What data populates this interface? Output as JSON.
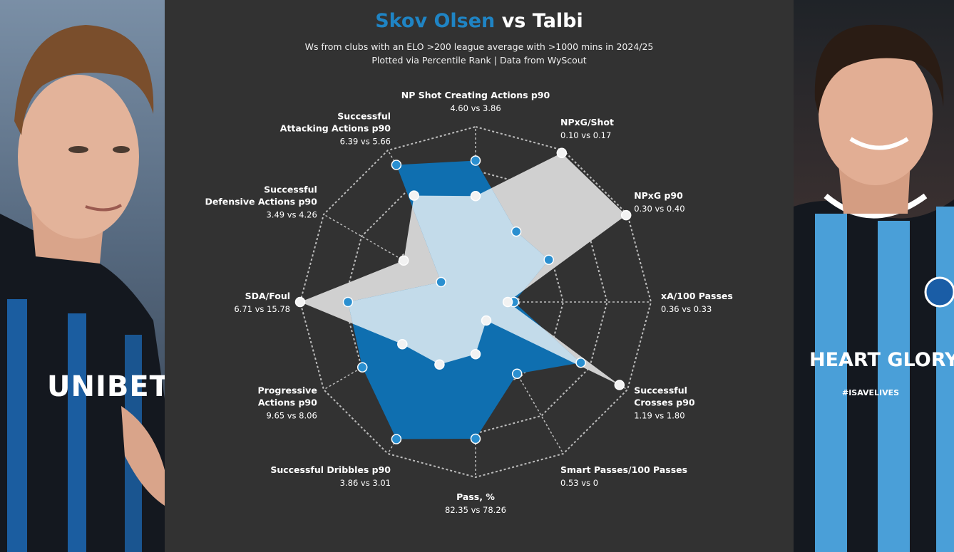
{
  "title": {
    "player1": "Skov Olsen",
    "vs": "vs",
    "player2": "Talbi"
  },
  "subtitle_line1": "Ws from clubs with an ELO >200 league average with >1000 mins in 2024/25",
  "subtitle_line2": "Plotted via Percentile Rank | Data from WyScout",
  "colors": {
    "player1_fill": "#0f6fb0",
    "player1_marker": "#2a8fd0",
    "player2_fill": "#d0d0d0",
    "overlap_fill": "#c3dbea",
    "player2_marker": "#f2f2f2",
    "background": "#323232",
    "grid": "#bdbdbd"
  },
  "photos": {
    "left": {
      "kit_sponsor": "UNIBET",
      "jersey_color": "blue-black stripes"
    },
    "right": {
      "kit_text": "HEART GLORY",
      "kit_tag": "#ISAVELIVES",
      "jersey_color": "blue-black stripes"
    }
  },
  "chart_data": {
    "type": "radar",
    "scale": "percentile",
    "r_range": [
      0,
      100
    ],
    "grid_rings": 4,
    "axes": [
      {
        "label": [
          "NP Shot Creating Actions p90"
        ],
        "value_text": "4.60 vs 3.86"
      },
      {
        "label": [
          "NPxG/Shot"
        ],
        "value_text": "0.10 vs 0.17"
      },
      {
        "label": [
          "NPxG p90"
        ],
        "value_text": "0.30 vs 0.40"
      },
      {
        "label": [
          "xA/100 Passes"
        ],
        "value_text": "0.36 vs 0.33"
      },
      {
        "label": [
          "Successful",
          "Crosses p90"
        ],
        "value_text": "1.19 vs 1.80"
      },
      {
        "label": [
          "Smart Passes/100 Passes"
        ],
        "value_text": "0.53 vs 0"
      },
      {
        "label": [
          "Pass, %"
        ],
        "value_text": "82.35 vs 78.26"
      },
      {
        "label": [
          "Successful Dribbles p90"
        ],
        "value_text": "3.86 vs 3.01"
      },
      {
        "label": [
          "Progressive",
          "Actions p90"
        ],
        "value_text": "9.65 vs 8.06"
      },
      {
        "label": [
          "SDA/Foul"
        ],
        "value_text": "6.71 vs 15.78"
      },
      {
        "label": [
          "Successful",
          "Defensive Actions p90"
        ],
        "value_text": "3.49 vs 4.26"
      },
      {
        "label": [
          "Successful",
          "Attacking Actions p90"
        ],
        "value_text": "6.39 vs 5.66"
      }
    ],
    "series": [
      {
        "name": "Skov Olsen",
        "values": [
          78,
          39,
          41,
          11,
          65,
          40,
          75,
          89,
          71,
          69,
          12,
          89
        ]
      },
      {
        "name": "Talbi",
        "values": [
          55,
          98,
          99,
          7,
          94,
          0,
          20,
          33,
          41,
          100,
          40,
          66
        ]
      }
    ]
  }
}
